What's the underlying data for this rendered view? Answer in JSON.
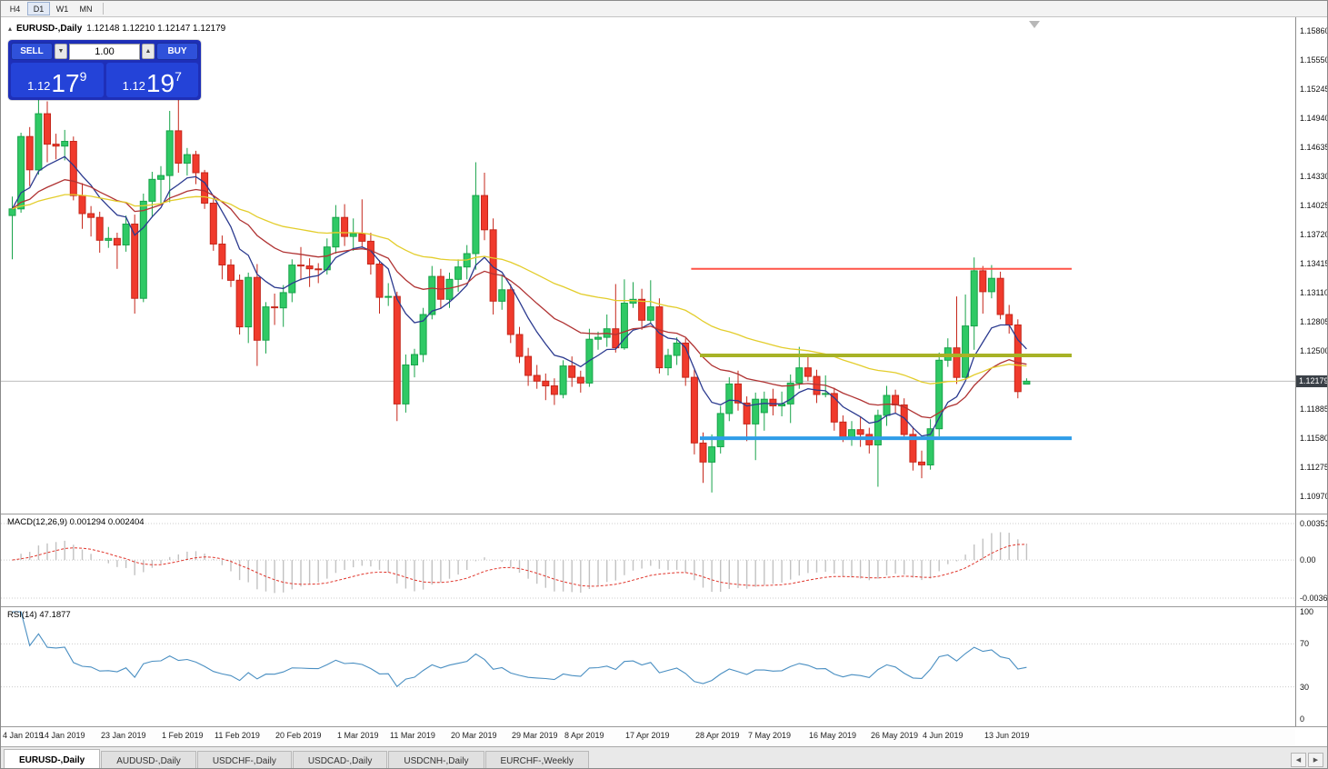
{
  "toolbar": {
    "timeframes": [
      "H4",
      "D1",
      "W1",
      "MN"
    ],
    "active": "D1"
  },
  "chart": {
    "title_symbol": "EURUSD-,Daily",
    "title_ohlc": "1.12148 1.12210 1.12147 1.12179"
  },
  "trade": {
    "sell_label": "SELL",
    "buy_label": "BUY",
    "volume": "1.00",
    "sell_price": {
      "prefix": "1.12",
      "big": "17",
      "sup": "9"
    },
    "buy_price": {
      "prefix": "1.12",
      "big": "19",
      "sup": "7"
    }
  },
  "icons": {
    "collapse": "▴",
    "spin_up": "▲",
    "spin_down": "▼",
    "tab_scroll_left": "◀",
    "tab_scroll_right": "▶"
  },
  "price_axis": {
    "labels": [
      "1.15860",
      "1.15550",
      "1.15245",
      "1.14940",
      "1.14635",
      "1.14330",
      "1.14025",
      "1.13720",
      "1.13415",
      "1.13110",
      "1.12805",
      "1.12500",
      "1.11885",
      "1.11580",
      "1.11275",
      "1.10970"
    ],
    "current": "1.12179"
  },
  "macd": {
    "label": "MACD(12,26,9) 0.001294 0.002404",
    "axis": [
      "0.003518",
      "0.00",
      "-0.00367"
    ],
    "fast": 12,
    "slow": 26,
    "signal": 9,
    "histogram_color": "#c2c2c2",
    "signal_color": "#e0352b"
  },
  "rsi": {
    "label": "RSI(14) 47.1877",
    "axis": [
      "100",
      "70",
      "30",
      "0"
    ],
    "levels": [
      70,
      30
    ],
    "period": 14,
    "line_color": "#4a8fc2"
  },
  "tabs": {
    "active_index": 0,
    "items": [
      "EURUSD-,Daily",
      "AUDUSD-,Daily",
      "USDCHF-,Daily",
      "USDCAD-,Daily",
      "USDCNH-,Daily",
      "EURCHF-,Weekly"
    ]
  },
  "chart_data": {
    "type": "candlestick",
    "symbol": "EURUSD",
    "timeframe": "Daily",
    "current_price": 1.12179,
    "price_range": [
      1.1097,
      1.1586
    ],
    "colors": {
      "up": "#2fc965",
      "up_stroke": "#18a34a",
      "down": "#f03a2c",
      "down_stroke": "#c5271b"
    },
    "x_labels": [
      [
        "4 Jan 2019",
        0
      ],
      [
        "14 Jan 2019",
        6
      ],
      [
        "23 Jan 2019",
        13
      ],
      [
        "1 Feb 2019",
        20
      ],
      [
        "11 Feb 2019",
        26
      ],
      [
        "20 Feb 2019",
        33
      ],
      [
        "1 Mar 2019",
        40
      ],
      [
        "11 Mar 2019",
        46
      ],
      [
        "20 Mar 2019",
        53
      ],
      [
        "29 Mar 2019",
        60
      ],
      [
        "8 Apr 2019",
        66
      ],
      [
        "17 Apr 2019",
        73
      ],
      [
        "28 Apr 2019",
        81
      ],
      [
        "7 May 2019",
        87
      ],
      [
        "16 May 2019",
        94
      ],
      [
        "26 May 2019",
        101
      ],
      [
        "4 Jun 2019",
        107
      ],
      [
        "13 Jun 2019",
        114
      ]
    ],
    "moving_averages": [
      {
        "period": 8,
        "color": "#2b3a8f"
      },
      {
        "period": 21,
        "color": "#b03333"
      },
      {
        "period": 50,
        "color": "#e3cd2b"
      }
    ],
    "hlines": [
      {
        "name": "resistance-hline",
        "price": 1.1336,
        "color": "#ff5347",
        "width": 2,
        "from": 78
      },
      {
        "name": "mid-support-hline",
        "price": 1.1245,
        "color": "#a7b226",
        "width": 4,
        "from": 79
      },
      {
        "name": "lower-support-hline",
        "price": 1.1158,
        "color": "#2f9de8",
        "width": 4,
        "from": 79
      }
    ],
    "candles": [
      [
        1.1392,
        1.1412,
        1.1346,
        1.1399
      ],
      [
        1.1399,
        1.1479,
        1.1395,
        1.1475
      ],
      [
        1.1475,
        1.1485,
        1.1423,
        1.144
      ],
      [
        1.144,
        1.1515,
        1.1435,
        1.1499
      ],
      [
        1.1499,
        1.1512,
        1.1448,
        1.1467
      ],
      [
        1.1467,
        1.1478,
        1.1451,
        1.1465
      ],
      [
        1.1465,
        1.1482,
        1.145,
        1.147
      ],
      [
        1.147,
        1.1475,
        1.1408,
        1.1413
      ],
      [
        1.1413,
        1.1426,
        1.1378,
        1.1394
      ],
      [
        1.1394,
        1.1402,
        1.137,
        1.139
      ],
      [
        1.139,
        1.1396,
        1.1353,
        1.1366
      ],
      [
        1.1366,
        1.138,
        1.1358,
        1.1368
      ],
      [
        1.1368,
        1.1374,
        1.1336,
        1.1361
      ],
      [
        1.1361,
        1.1392,
        1.1354,
        1.1383
      ],
      [
        1.1383,
        1.1393,
        1.1289,
        1.1305
      ],
      [
        1.1305,
        1.1415,
        1.1301,
        1.1407
      ],
      [
        1.1407,
        1.1438,
        1.139,
        1.143
      ],
      [
        1.143,
        1.1444,
        1.1405,
        1.1434
      ],
      [
        1.1434,
        1.1502,
        1.1406,
        1.1481
      ],
      [
        1.1481,
        1.1515,
        1.1437,
        1.1447
      ],
      [
        1.1447,
        1.1463,
        1.1434,
        1.1456
      ],
      [
        1.1456,
        1.146,
        1.1425,
        1.1437
      ],
      [
        1.1437,
        1.144,
        1.1399,
        1.1405
      ],
      [
        1.1405,
        1.141,
        1.1355,
        1.1362
      ],
      [
        1.1362,
        1.1371,
        1.1325,
        1.134
      ],
      [
        1.134,
        1.1346,
        1.1317,
        1.1324
      ],
      [
        1.1324,
        1.133,
        1.1267,
        1.1275
      ],
      [
        1.1275,
        1.1332,
        1.1258,
        1.1327
      ],
      [
        1.1327,
        1.1341,
        1.1234,
        1.1261
      ],
      [
        1.1261,
        1.1301,
        1.1247,
        1.1296
      ],
      [
        1.1296,
        1.131,
        1.1277,
        1.1295
      ],
      [
        1.1295,
        1.1319,
        1.1275,
        1.1311
      ],
      [
        1.1311,
        1.1346,
        1.1301,
        1.134
      ],
      [
        1.134,
        1.1359,
        1.1324,
        1.1339
      ],
      [
        1.1339,
        1.1347,
        1.1317,
        1.1336
      ],
      [
        1.1336,
        1.1342,
        1.1321,
        1.1335
      ],
      [
        1.1335,
        1.1368,
        1.133,
        1.1359
      ],
      [
        1.1359,
        1.1403,
        1.1352,
        1.139
      ],
      [
        1.139,
        1.1404,
        1.136,
        1.137
      ],
      [
        1.137,
        1.1389,
        1.1355,
        1.1373
      ],
      [
        1.1373,
        1.1409,
        1.1358,
        1.1365
      ],
      [
        1.1365,
        1.1374,
        1.133,
        1.1341
      ],
      [
        1.1341,
        1.1345,
        1.1289,
        1.1306
      ],
      [
        1.1306,
        1.1321,
        1.1297,
        1.1307
      ],
      [
        1.1307,
        1.1312,
        1.1176,
        1.1194
      ],
      [
        1.1194,
        1.1246,
        1.1185,
        1.1235
      ],
      [
        1.1235,
        1.1252,
        1.1222,
        1.1246
      ],
      [
        1.1246,
        1.1295,
        1.1238,
        1.1288
      ],
      [
        1.1288,
        1.1339,
        1.1283,
        1.1328
      ],
      [
        1.1328,
        1.1336,
        1.1294,
        1.1304
      ],
      [
        1.1304,
        1.1332,
        1.1295,
        1.1325
      ],
      [
        1.1325,
        1.1346,
        1.1312,
        1.1338
      ],
      [
        1.1338,
        1.1361,
        1.1325,
        1.1352
      ],
      [
        1.1352,
        1.1448,
        1.1335,
        1.1413
      ],
      [
        1.1413,
        1.1437,
        1.1366,
        1.1377
      ],
      [
        1.1377,
        1.1389,
        1.1288,
        1.1302
      ],
      [
        1.1302,
        1.133,
        1.1293,
        1.1314
      ],
      [
        1.1314,
        1.132,
        1.1258,
        1.1267
      ],
      [
        1.1267,
        1.1275,
        1.1237,
        1.1244
      ],
      [
        1.1244,
        1.1253,
        1.1213,
        1.1224
      ],
      [
        1.1224,
        1.1235,
        1.121,
        1.1218
      ],
      [
        1.1218,
        1.1226,
        1.1198,
        1.1213
      ],
      [
        1.1213,
        1.1221,
        1.1193,
        1.1204
      ],
      [
        1.1204,
        1.124,
        1.12,
        1.1234
      ],
      [
        1.1234,
        1.1244,
        1.1212,
        1.1222
      ],
      [
        1.1222,
        1.1229,
        1.1206,
        1.1216
      ],
      [
        1.1216,
        1.1273,
        1.1212,
        1.1262
      ],
      [
        1.1262,
        1.127,
        1.1251,
        1.1264
      ],
      [
        1.1264,
        1.1288,
        1.1254,
        1.1273
      ],
      [
        1.1273,
        1.132,
        1.1248,
        1.1253
      ],
      [
        1.1253,
        1.1325,
        1.1251,
        1.13
      ],
      [
        1.13,
        1.1322,
        1.1295,
        1.1304
      ],
      [
        1.1304,
        1.1315,
        1.1272,
        1.1282
      ],
      [
        1.1282,
        1.1324,
        1.1279,
        1.1296
      ],
      [
        1.1296,
        1.1305,
        1.1226,
        1.1232
      ],
      [
        1.1232,
        1.1252,
        1.1224,
        1.1245
      ],
      [
        1.1245,
        1.1264,
        1.1235,
        1.1258
      ],
      [
        1.1258,
        1.1263,
        1.1213,
        1.1222
      ],
      [
        1.1222,
        1.123,
        1.1141,
        1.1153
      ],
      [
        1.1153,
        1.1164,
        1.1111,
        1.1133
      ],
      [
        1.1133,
        1.1162,
        1.1101,
        1.1149
      ],
      [
        1.1149,
        1.1192,
        1.1142,
        1.1184
      ],
      [
        1.1184,
        1.1222,
        1.1176,
        1.1215
      ],
      [
        1.1215,
        1.1229,
        1.1187,
        1.1195
      ],
      [
        1.1195,
        1.1202,
        1.1155,
        1.1173
      ],
      [
        1.1173,
        1.1206,
        1.1135,
        1.1199
      ],
      [
        1.1185,
        1.1207,
        1.1166,
        1.1199
      ],
      [
        1.1199,
        1.121,
        1.1182,
        1.1192
      ],
      [
        1.1192,
        1.1207,
        1.1181,
        1.1194
      ],
      [
        1.1194,
        1.1225,
        1.1174,
        1.1216
      ],
      [
        1.1216,
        1.1254,
        1.121,
        1.1232
      ],
      [
        1.1232,
        1.1247,
        1.1218,
        1.1223
      ],
      [
        1.1223,
        1.123,
        1.1195,
        1.1204
      ],
      [
        1.1204,
        1.1224,
        1.1201,
        1.1205
      ],
      [
        1.1205,
        1.1211,
        1.1166,
        1.1175
      ],
      [
        1.1175,
        1.1182,
        1.1154,
        1.1158
      ],
      [
        1.1158,
        1.1176,
        1.115,
        1.1167
      ],
      [
        1.1167,
        1.118,
        1.1149,
        1.1162
      ],
      [
        1.1162,
        1.1169,
        1.1142,
        1.1151
      ],
      [
        1.1151,
        1.1188,
        1.1107,
        1.1182
      ],
      [
        1.1182,
        1.1213,
        1.1171,
        1.1203
      ],
      [
        1.1203,
        1.1209,
        1.1184,
        1.1193
      ],
      [
        1.1193,
        1.12,
        1.1159,
        1.1162
      ],
      [
        1.1162,
        1.117,
        1.1124,
        1.1133
      ],
      [
        1.1133,
        1.1145,
        1.1116,
        1.113
      ],
      [
        1.113,
        1.1178,
        1.1125,
        1.1168
      ],
      [
        1.1168,
        1.1248,
        1.116,
        1.124
      ],
      [
        1.124,
        1.1263,
        1.1233,
        1.1253
      ],
      [
        1.1253,
        1.1307,
        1.1215,
        1.1222
      ],
      [
        1.1222,
        1.1309,
        1.122,
        1.1276
      ],
      [
        1.1276,
        1.1348,
        1.1251,
        1.1334
      ],
      [
        1.1334,
        1.1339,
        1.1289,
        1.1312
      ],
      [
        1.1312,
        1.134,
        1.1305,
        1.1326
      ],
      [
        1.1326,
        1.1333,
        1.1283,
        1.1288
      ],
      [
        1.1288,
        1.1298,
        1.1268,
        1.1277
      ],
      [
        1.1277,
        1.1283,
        1.12,
        1.1207
      ],
      [
        1.12148,
        1.1221,
        1.12147,
        1.12179
      ]
    ]
  }
}
